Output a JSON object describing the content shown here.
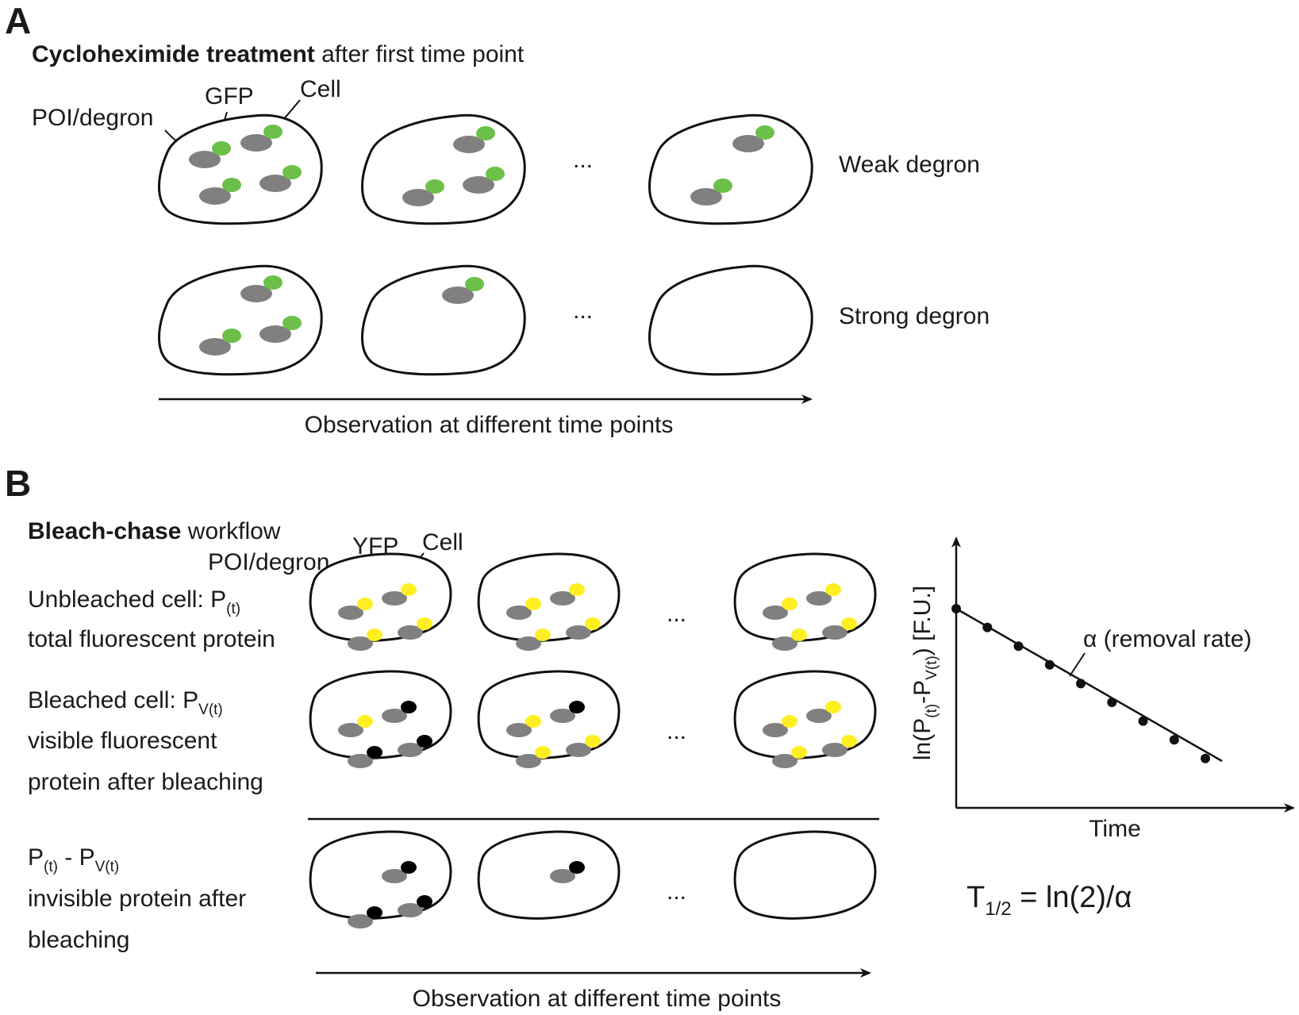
{
  "panel_a": {
    "letter": "A",
    "title_bold": "Cycloheximide treatment",
    "title_rest": " after first time point",
    "label_poi": "POI/degron",
    "label_gfp": "GFP",
    "label_cell": "Cell",
    "row_weak": "Weak degron",
    "row_strong": "Strong degron",
    "ellipsis": "...",
    "axis_label": "Observation at different time points"
  },
  "panel_b": {
    "letter": "B",
    "title_bold": "Bleach-chase",
    "title_rest": " workflow",
    "label_poi": "POI/degron",
    "label_yfp": "YFP",
    "label_cell": "Cell",
    "unbleached_line1": "Unbleached cell: P",
    "unbleached_sub": "(t)",
    "unbleached_line2": "total fluorescent protein",
    "bleached_line1": "Bleached cell: P",
    "bleached_sub": "V(t)",
    "bleached_line2": "visible fluorescent",
    "bleached_line3": "protein after bleaching",
    "diff_p": "P",
    "diff_sub1": "(t)",
    "diff_mid": " - P",
    "diff_sub2": "V(t)",
    "diff_line2": "invisible protein after",
    "diff_line3": "bleaching",
    "ellipsis": "...",
    "axis_label": "Observation at different time points"
  },
  "plot": {
    "ylabel_main": "ln(P",
    "ylabel_sub1": "(t)",
    "ylabel_mid": "-P",
    "ylabel_sub2": "V(t)",
    "ylabel_end": ") [F.U.]",
    "xlabel": "Time",
    "line_label": "α (removal rate)",
    "formula_t": "T",
    "formula_sub": "1/2",
    "formula_rest": " = ln(2)/α"
  },
  "chart_data": {
    "type": "scatter",
    "x": [
      0,
      1,
      2,
      3,
      4,
      5,
      6,
      7,
      8
    ],
    "y": [
      8,
      7,
      6,
      5,
      4,
      3,
      2,
      1,
      0
    ],
    "xlabel": "Time",
    "ylabel": "ln(P(t)-PV(t)) [F.U.]",
    "fit_line": "linear",
    "ticks": "none",
    "grid": false
  },
  "colors": {
    "gfp": "#6cc04a",
    "yfp": "#ffee22",
    "bleached": "#000000",
    "poi": "#808080",
    "outline": "#111111"
  }
}
